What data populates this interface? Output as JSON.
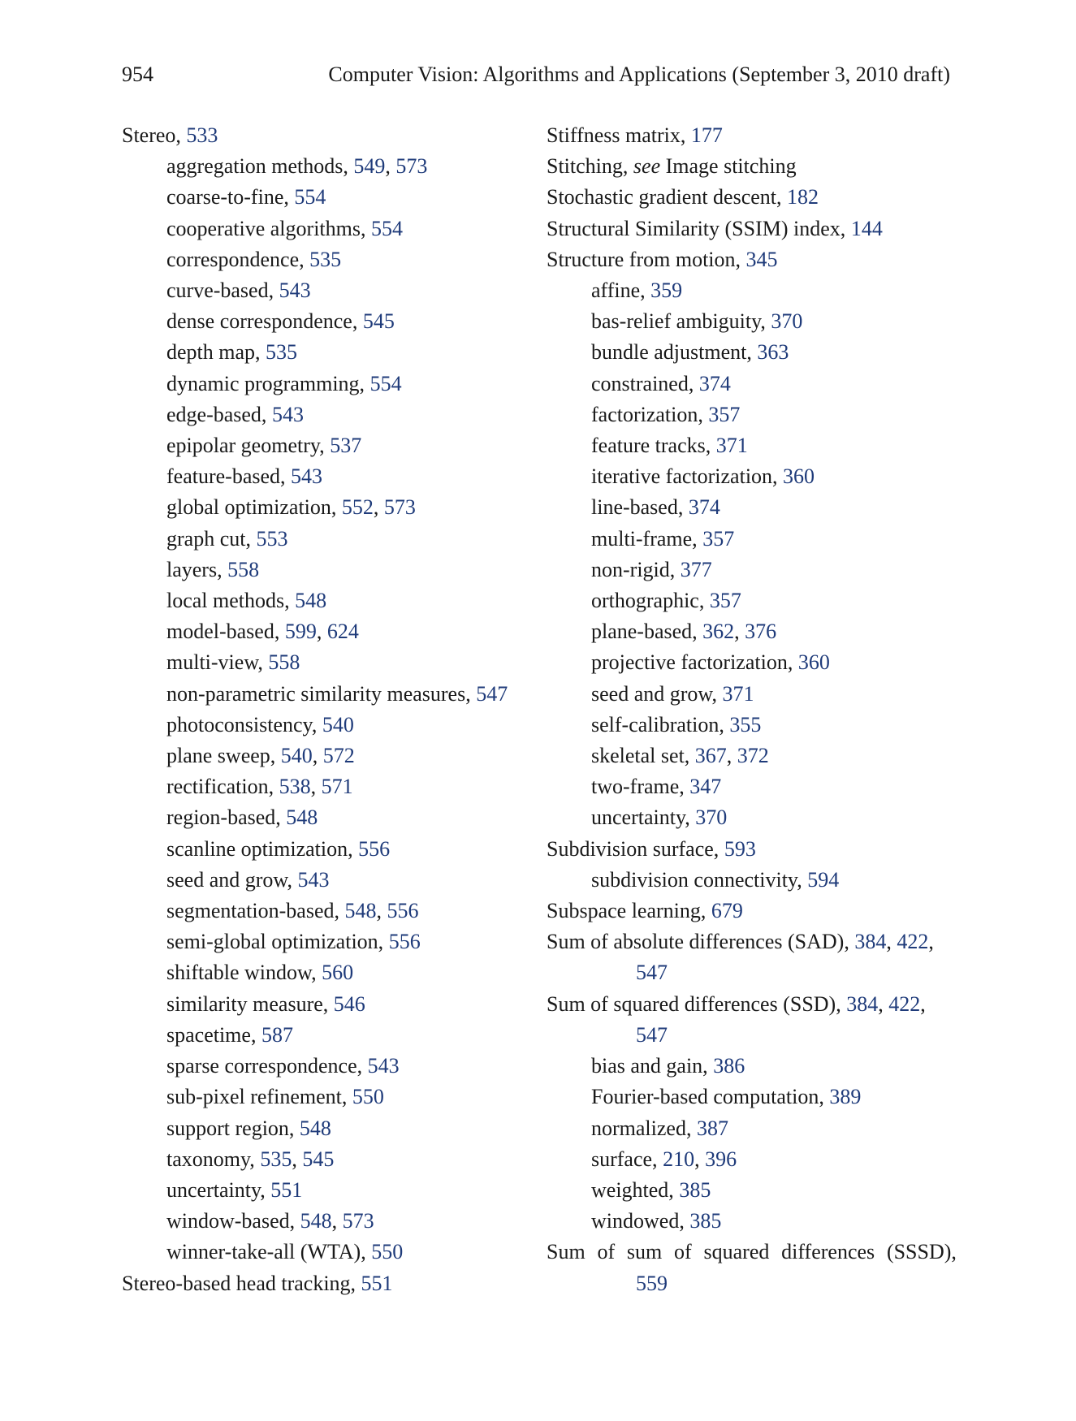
{
  "header": {
    "page_number": "954",
    "running_title": "Computer Vision: Algorithms and Applications (September 3, 2010 draft)"
  },
  "colors": {
    "link": "#1f3b7a",
    "text": "#1a1a1a"
  },
  "left_column": [
    {
      "level": 0,
      "term": "Stereo, ",
      "pages": [
        "533"
      ]
    },
    {
      "level": 1,
      "term": "aggregation methods, ",
      "pages": [
        "549",
        "573"
      ]
    },
    {
      "level": 1,
      "term": "coarse-to-fine, ",
      "pages": [
        "554"
      ]
    },
    {
      "level": 1,
      "term": "cooperative algorithms, ",
      "pages": [
        "554"
      ]
    },
    {
      "level": 1,
      "term": "correspondence, ",
      "pages": [
        "535"
      ]
    },
    {
      "level": 1,
      "term": "curve-based, ",
      "pages": [
        "543"
      ]
    },
    {
      "level": 1,
      "term": "dense correspondence, ",
      "pages": [
        "545"
      ]
    },
    {
      "level": 1,
      "term": "depth map, ",
      "pages": [
        "535"
      ]
    },
    {
      "level": 1,
      "term": "dynamic programming, ",
      "pages": [
        "554"
      ]
    },
    {
      "level": 1,
      "term": "edge-based, ",
      "pages": [
        "543"
      ]
    },
    {
      "level": 1,
      "term": "epipolar geometry, ",
      "pages": [
        "537"
      ]
    },
    {
      "level": 1,
      "term": "feature-based, ",
      "pages": [
        "543"
      ]
    },
    {
      "level": 1,
      "term": "global optimization, ",
      "pages": [
        "552",
        "573"
      ]
    },
    {
      "level": 1,
      "term": "graph cut, ",
      "pages": [
        "553"
      ]
    },
    {
      "level": 1,
      "term": "layers, ",
      "pages": [
        "558"
      ]
    },
    {
      "level": 1,
      "term": "local methods, ",
      "pages": [
        "548"
      ]
    },
    {
      "level": 1,
      "term": "model-based, ",
      "pages": [
        "599",
        "624"
      ]
    },
    {
      "level": 1,
      "term": "multi-view, ",
      "pages": [
        "558"
      ]
    },
    {
      "level": 1,
      "term": "non-parametric similarity measures, ",
      "pages": [
        "547"
      ]
    },
    {
      "level": 1,
      "term": "photoconsistency, ",
      "pages": [
        "540"
      ]
    },
    {
      "level": 1,
      "term": "plane sweep, ",
      "pages": [
        "540",
        "572"
      ]
    },
    {
      "level": 1,
      "term": "rectification, ",
      "pages": [
        "538",
        "571"
      ]
    },
    {
      "level": 1,
      "term": "region-based, ",
      "pages": [
        "548"
      ]
    },
    {
      "level": 1,
      "term": "scanline optimization, ",
      "pages": [
        "556"
      ]
    },
    {
      "level": 1,
      "term": "seed and grow, ",
      "pages": [
        "543"
      ]
    },
    {
      "level": 1,
      "term": "segmentation-based, ",
      "pages": [
        "548",
        "556"
      ]
    },
    {
      "level": 1,
      "term": "semi-global optimization, ",
      "pages": [
        "556"
      ]
    },
    {
      "level": 1,
      "term": "shiftable window, ",
      "pages": [
        "560"
      ]
    },
    {
      "level": 1,
      "term": "similarity measure, ",
      "pages": [
        "546"
      ]
    },
    {
      "level": 1,
      "term": "spacetime, ",
      "pages": [
        "587"
      ]
    },
    {
      "level": 1,
      "term": "sparse correspondence, ",
      "pages": [
        "543"
      ]
    },
    {
      "level": 1,
      "term": "sub-pixel refinement, ",
      "pages": [
        "550"
      ]
    },
    {
      "level": 1,
      "term": "support region, ",
      "pages": [
        "548"
      ]
    },
    {
      "level": 1,
      "term": "taxonomy, ",
      "pages": [
        "535",
        "545"
      ]
    },
    {
      "level": 1,
      "term": "uncertainty, ",
      "pages": [
        "551"
      ]
    },
    {
      "level": 1,
      "term": "window-based, ",
      "pages": [
        "548",
        "573"
      ]
    },
    {
      "level": 1,
      "term": "winner-take-all (WTA), ",
      "pages": [
        "550"
      ]
    },
    {
      "level": 0,
      "term": "Stereo-based head tracking, ",
      "pages": [
        "551"
      ]
    }
  ],
  "right_column": [
    {
      "level": 0,
      "term": "Stiffness matrix, ",
      "pages": [
        "177"
      ]
    },
    {
      "level": 0,
      "term": "Stitching, ",
      "see_word": "see",
      "see_target": " Image stitching",
      "pages": []
    },
    {
      "level": 0,
      "term": "Stochastic gradient descent, ",
      "pages": [
        "182"
      ]
    },
    {
      "level": 0,
      "term": "Structural Similarity (SSIM) index, ",
      "pages": [
        "144"
      ]
    },
    {
      "level": 0,
      "term": "Structure from motion, ",
      "pages": [
        "345"
      ]
    },
    {
      "level": 1,
      "term": "affine, ",
      "pages": [
        "359"
      ]
    },
    {
      "level": 1,
      "term": "bas-relief ambiguity, ",
      "pages": [
        "370"
      ]
    },
    {
      "level": 1,
      "term": "bundle adjustment, ",
      "pages": [
        "363"
      ]
    },
    {
      "level": 1,
      "term": "constrained, ",
      "pages": [
        "374"
      ]
    },
    {
      "level": 1,
      "term": "factorization, ",
      "pages": [
        "357"
      ]
    },
    {
      "level": 1,
      "term": "feature tracks, ",
      "pages": [
        "371"
      ]
    },
    {
      "level": 1,
      "term": "iterative factorization, ",
      "pages": [
        "360"
      ]
    },
    {
      "level": 1,
      "term": "line-based, ",
      "pages": [
        "374"
      ]
    },
    {
      "level": 1,
      "term": "multi-frame, ",
      "pages": [
        "357"
      ]
    },
    {
      "level": 1,
      "term": "non-rigid, ",
      "pages": [
        "377"
      ]
    },
    {
      "level": 1,
      "term": "orthographic, ",
      "pages": [
        "357"
      ]
    },
    {
      "level": 1,
      "term": "plane-based, ",
      "pages": [
        "362",
        "376"
      ]
    },
    {
      "level": 1,
      "term": "projective factorization, ",
      "pages": [
        "360"
      ]
    },
    {
      "level": 1,
      "term": "seed and grow, ",
      "pages": [
        "371"
      ]
    },
    {
      "level": 1,
      "term": "self-calibration, ",
      "pages": [
        "355"
      ]
    },
    {
      "level": 1,
      "term": "skeletal set, ",
      "pages": [
        "367",
        "372"
      ]
    },
    {
      "level": 1,
      "term": "two-frame, ",
      "pages": [
        "347"
      ]
    },
    {
      "level": 1,
      "term": "uncertainty, ",
      "pages": [
        "370"
      ]
    },
    {
      "level": 0,
      "term": "Subdivision surface, ",
      "pages": [
        "593"
      ]
    },
    {
      "level": 1,
      "term": "subdivision connectivity, ",
      "pages": [
        "594"
      ]
    },
    {
      "level": 0,
      "term": "Subspace learning, ",
      "pages": [
        "679"
      ]
    },
    {
      "level": 0,
      "term": "Sum of absolute differences (SAD), ",
      "pages": [
        "384",
        "422"
      ],
      "trailing_comma": true,
      "continuation_pages": [
        "547"
      ]
    },
    {
      "level": 0,
      "term": "Sum of squared differences (SSD), ",
      "pages": [
        "384",
        "422"
      ],
      "trailing_comma": true,
      "continuation_pages": [
        "547"
      ]
    },
    {
      "level": 1,
      "term": "bias and gain, ",
      "pages": [
        "386"
      ]
    },
    {
      "level": 1,
      "term": "Fourier-based computation, ",
      "pages": [
        "389"
      ]
    },
    {
      "level": 1,
      "term": "normalized, ",
      "pages": [
        "387"
      ]
    },
    {
      "level": 1,
      "term": "surface, ",
      "pages": [
        "210",
        "396"
      ]
    },
    {
      "level": 1,
      "term": "weighted, ",
      "pages": [
        "385"
      ]
    },
    {
      "level": 1,
      "term": "windowed, ",
      "pages": [
        "385"
      ]
    },
    {
      "level": 0,
      "term": "Sum of sum of squared differences (SSSD),",
      "pages": [],
      "justify": true,
      "continuation_pages": [
        "559"
      ]
    }
  ]
}
